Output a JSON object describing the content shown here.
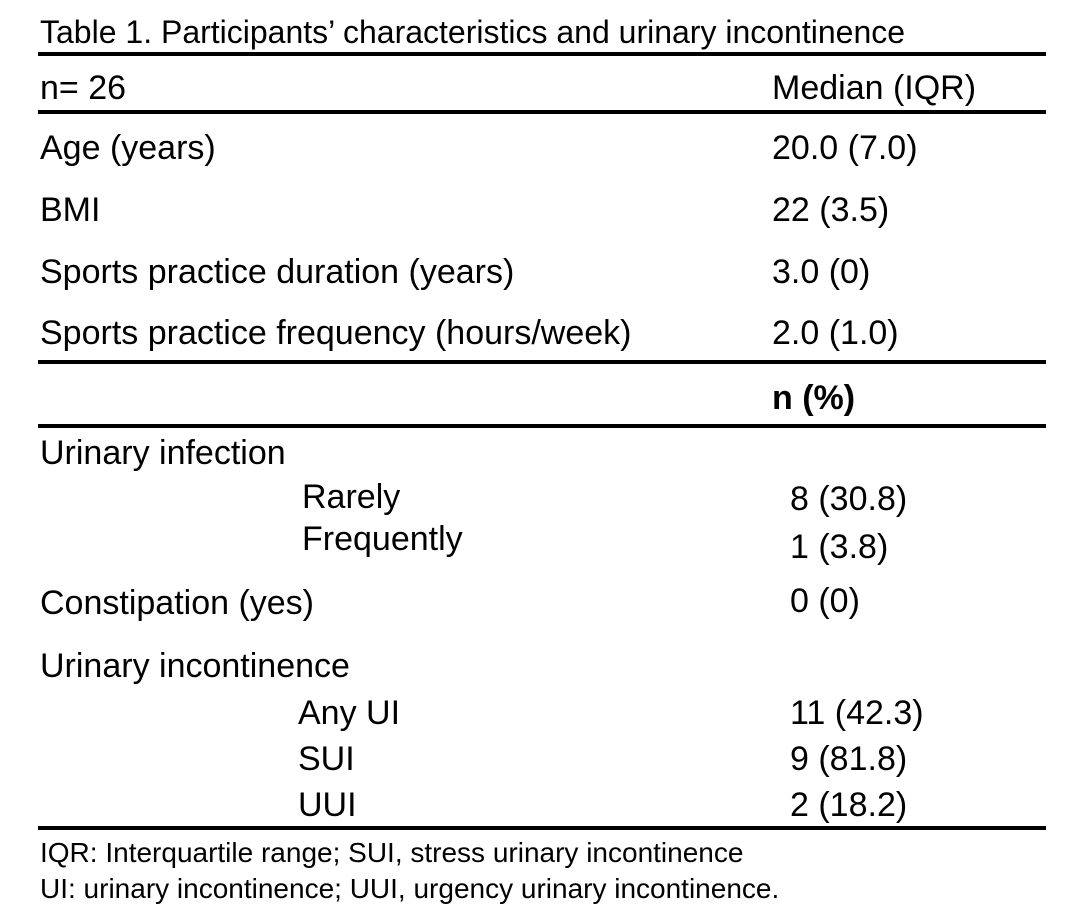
{
  "title": "Table 1. Participants’ characteristics and urinary incontinence",
  "header": {
    "n_label": "n= 26",
    "stat_label": "Median (IQR)"
  },
  "continuous_rows": [
    {
      "label": "Age (years)",
      "value": "20.0 (7.0)"
    },
    {
      "label": "BMI",
      "value": "22 (3.5)"
    },
    {
      "label": "Sports practice duration (years)",
      "value": "3.0 (0)"
    },
    {
      "label": "Sports practice frequency (hours/week)",
      "value": "2.0 (1.0)"
    }
  ],
  "subheader": "n (%)",
  "urinary_infection": {
    "label": "Urinary infection",
    "items": [
      {
        "label": "Rarely",
        "value": "8 (30.8)"
      },
      {
        "label": "Frequently",
        "value": "1 (3.8)"
      }
    ]
  },
  "constipation": {
    "label": "Constipation (yes)",
    "value": "0 (0)"
  },
  "urinary_incontinence": {
    "label": "Urinary incontinence",
    "items": [
      {
        "label": "Any UI",
        "value": "11 (42.3)"
      },
      {
        "label": "SUI",
        "value": "9 (81.8)"
      },
      {
        "label": "UUI",
        "value": "2 (18.2)"
      }
    ]
  },
  "footnotes": [
    "IQR: Interquartile range; SUI, stress urinary incontinence",
    "UI: urinary incontinence; UUI, urgency urinary incontinence."
  ]
}
